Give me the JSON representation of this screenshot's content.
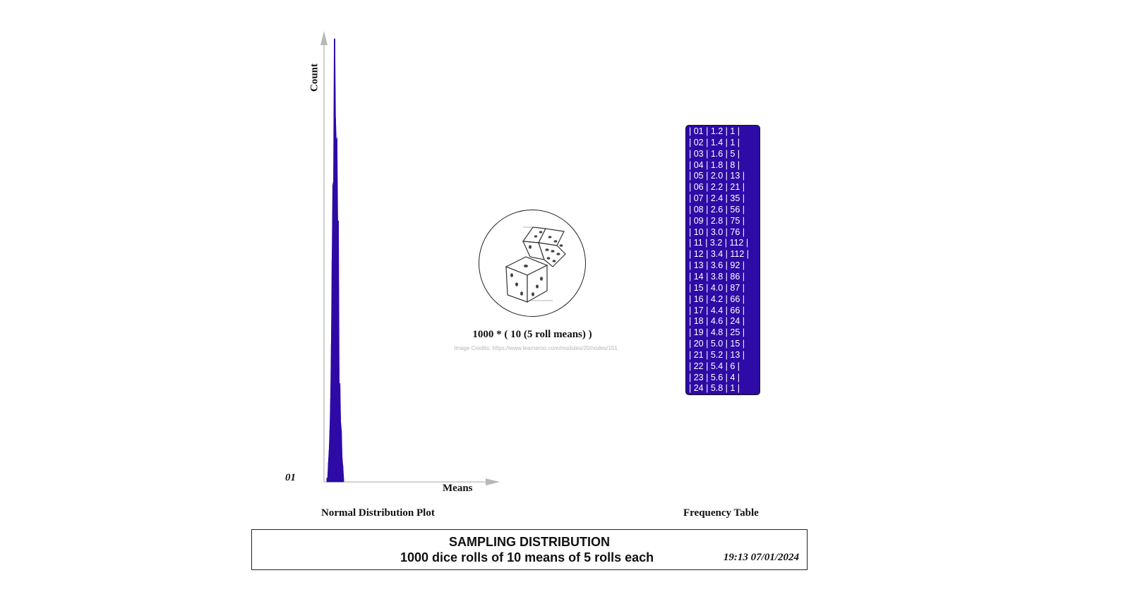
{
  "chart_data": {
    "type": "area",
    "ylabel": "Count",
    "xlabel": "Means",
    "origin_label": "01",
    "caption": "Normal Distribution Plot",
    "fill_color": "#2e0aa6",
    "axis_color": "#b8b8b8",
    "x": [
      1.2,
      1.4,
      1.6,
      1.8,
      2.0,
      2.2,
      2.4,
      2.6,
      2.8,
      3.0,
      3.2,
      3.4,
      3.6,
      3.8,
      4.0,
      4.2,
      4.4,
      4.6,
      4.8,
      5.0,
      5.2,
      5.4,
      5.6,
      5.8
    ],
    "values": [
      1,
      1,
      5,
      8,
      13,
      21,
      35,
      56,
      75,
      76,
      112,
      112,
      92,
      86,
      87,
      66,
      66,
      24,
      25,
      15,
      13,
      6,
      4,
      1
    ]
  },
  "center": {
    "formula": "1000 * ( 10 (5 roll means) )",
    "credits": "Image Credits: https://www.learneroo.com/modules/20/nodes/151",
    "icon": "dice-icon"
  },
  "frequency_table": {
    "caption": "Frequency Table",
    "background": "#2e0aa6",
    "rows": [
      "| 01 | 1.2 | 1 |",
      "| 02 | 1.4 | 1 |",
      "| 03 | 1.6 | 5 |",
      "| 04 | 1.8 | 8 |",
      "| 05 | 2.0 | 13 |",
      "| 06 | 2.2 | 21 |",
      "| 07 | 2.4 | 35 |",
      "| 08 | 2.6 | 56 |",
      "| 09 | 2.8 | 75 |",
      "| 10 | 3.0 | 76 |",
      "| 11 | 3.2 | 112 |",
      "| 12 | 3.4 | 112 |",
      "| 13 | 3.6 | 92 |",
      "| 14 | 3.8 | 86 |",
      "| 15 | 4.0 | 87 |",
      "| 16 | 4.2 | 66 |",
      "| 17 | 4.4 | 66 |",
      "| 18 | 4.6 | 24 |",
      "| 19 | 4.8 | 25 |",
      "| 20 | 5.0 | 15 |",
      "| 21 | 5.2 | 13 |",
      "| 22 | 5.4 | 6 |",
      "| 23 | 5.6 | 4 |",
      "| 24 | 5.8 | 1 |"
    ]
  },
  "footer": {
    "title": "SAMPLING DISTRIBUTION",
    "subtitle": "1000 dice rolls of 10 means of 5 rolls each",
    "timestamp": "19:13 07/01/2024"
  }
}
